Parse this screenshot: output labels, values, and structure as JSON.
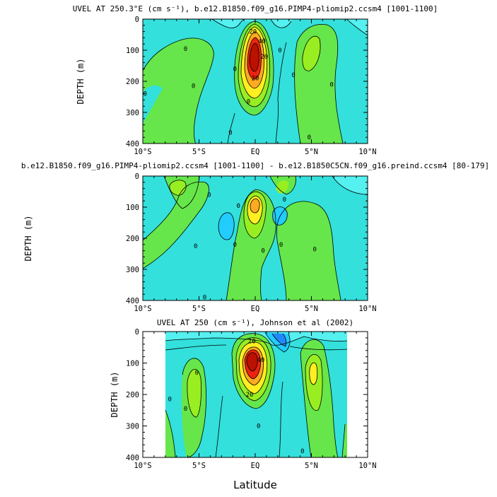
{
  "colors": {
    "background": "#ffffff",
    "cyan": "#33e0dc",
    "light_cyan": "#55f0f0",
    "sky_blue": "#22ccff",
    "blue": "#2288ff",
    "green": "#66e64a",
    "light_green": "#44e08a",
    "lime": "#99ee22",
    "yellow": "#ffee22",
    "orange": "#ffaa22",
    "red": "#ee2211",
    "dark_red": "#bb1100"
  },
  "xlabel": "Latitude",
  "chart_data": [
    {
      "type": "contour",
      "title": "UVEL AT 250.3°E (cm s⁻¹), b.e12.B1850.f09_g16.PIMP4-pliomip2.ccsm4 [1001-1100]",
      "ylabel": "DEPTH (m)",
      "xlabel": "",
      "x_ticks": [
        "10°S",
        "5°S",
        "EQ",
        "5°N",
        "10°N"
      ],
      "y_ticks": [
        "0",
        "100",
        "200",
        "300",
        "400"
      ],
      "xlim": [
        -10,
        10
      ],
      "ylim": [
        400,
        0
      ],
      "max_value_location": {
        "lat": 0,
        "depth": 90
      },
      "contour_labels": [
        {
          "text": "20",
          "lat": -0.2,
          "depth": 40
        },
        {
          "text": "40",
          "lat": 0.6,
          "depth": 70
        },
        {
          "text": "20",
          "lat": 0.8,
          "depth": 120
        },
        {
          "text": "20",
          "lat": 0,
          "depth": 190
        },
        {
          "text": "0",
          "lat": -6.2,
          "depth": 95
        },
        {
          "text": "0",
          "lat": -5.5,
          "depth": 215
        },
        {
          "text": "0",
          "lat": -9.8,
          "depth": 240
        },
        {
          "text": "0",
          "lat": -1.8,
          "depth": 160
        },
        {
          "text": "0",
          "lat": -2.2,
          "depth": 365
        },
        {
          "text": "0",
          "lat": -0.6,
          "depth": 265
        },
        {
          "text": "0",
          "lat": 3.4,
          "depth": 180
        },
        {
          "text": "0",
          "lat": 2.2,
          "depth": 100
        },
        {
          "text": "0",
          "lat": 6.8,
          "depth": 210
        },
        {
          "text": "0",
          "lat": 4.8,
          "depth": 380
        }
      ]
    },
    {
      "type": "contour",
      "title": "b.e12.B1850.f09_g16.PIMP4-pliomip2.ccsm4 [1001-1100] - b.e12.B1850C5CN.f09_g16.preind.ccsm4 [80-179]",
      "ylabel": "DEPTH (m)",
      "xlabel": "",
      "x_ticks": [
        "10°S",
        "5°S",
        "EQ",
        "5°N",
        "10°N"
      ],
      "y_ticks": [
        "0",
        "100",
        "200",
        "300",
        "400"
      ],
      "xlim": [
        -10,
        10
      ],
      "ylim": [
        400,
        0
      ],
      "max_value_location": {
        "lat": 0,
        "depth": 85
      },
      "contour_labels": [
        {
          "text": "0",
          "lat": -4.1,
          "depth": 60
        },
        {
          "text": "0",
          "lat": -1.5,
          "depth": 95
        },
        {
          "text": "0",
          "lat": 2.6,
          "depth": 75
        },
        {
          "text": "0",
          "lat": -5.3,
          "depth": 225
        },
        {
          "text": "0",
          "lat": -1.8,
          "depth": 220
        },
        {
          "text": "0",
          "lat": 0.7,
          "depth": 240
        },
        {
          "text": "0",
          "lat": 2.3,
          "depth": 220
        },
        {
          "text": "0",
          "lat": 5.3,
          "depth": 235
        },
        {
          "text": "0",
          "lat": -4.5,
          "depth": 390
        }
      ]
    },
    {
      "type": "contour",
      "title": "UVEL AT 250 (cm s⁻¹), Johnson et al (2002)",
      "ylabel": "DEPTH (m)",
      "xlabel": "Latitude",
      "x_ticks": [
        "10°S",
        "5°S",
        "EQ",
        "5°N",
        "10°N"
      ],
      "y_ticks": [
        "0",
        "100",
        "200",
        "300",
        "400"
      ],
      "xlim": [
        -10,
        10
      ],
      "ylim": [
        400,
        0
      ],
      "data_extent_lat": [
        -8,
        8.2
      ],
      "max_value_location": {
        "lat": -0.3,
        "depth": 75
      },
      "contour_labels": [
        {
          "text": "20",
          "lat": -0.3,
          "depth": 30
        },
        {
          "text": "40",
          "lat": 0.5,
          "depth": 90
        },
        {
          "text": "20",
          "lat": -0.5,
          "depth": 200
        },
        {
          "text": "0",
          "lat": -7.6,
          "depth": 215
        },
        {
          "text": "0",
          "lat": -6.2,
          "depth": 245
        },
        {
          "text": "0",
          "lat": -5.2,
          "depth": 130
        },
        {
          "text": "0",
          "lat": 0.3,
          "depth": 300
        },
        {
          "text": "0",
          "lat": 4.2,
          "depth": 380
        }
      ]
    }
  ]
}
